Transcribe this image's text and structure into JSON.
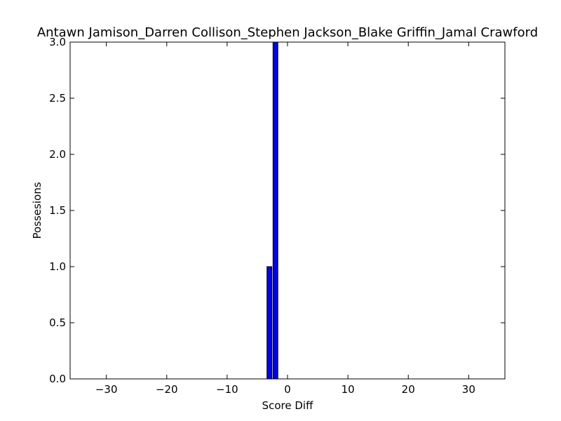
{
  "chart_data": {
    "type": "bar",
    "title": "Antawn Jamison_Darren Collison_Stephen Jackson_Blake Griffin_Jamal Crawford",
    "xlabel": "Score Diff",
    "ylabel": "Possesions",
    "xlim": [
      -36,
      36
    ],
    "ylim": [
      0,
      3.0
    ],
    "xticks": [
      -30,
      -20,
      -10,
      0,
      10,
      20,
      30
    ],
    "xtick_labels": [
      "−30",
      "−20",
      "−10",
      "0",
      "10",
      "20",
      "30"
    ],
    "yticks": [
      0,
      0.5,
      1.0,
      1.5,
      2.0,
      2.5,
      3.0
    ],
    "ytick_labels": [
      "0.0",
      "0.5",
      "1.0",
      "1.5",
      "2.0",
      "2.5",
      "3.0"
    ],
    "bar_width": 0.8,
    "x": [
      -35,
      -34,
      -33,
      -32,
      -31,
      -30,
      -29,
      -28,
      -27,
      -26,
      -25,
      -24,
      -23,
      -22,
      -21,
      -20,
      -19,
      -18,
      -17,
      -16,
      -15,
      -14,
      -13,
      -12,
      -11,
      -10,
      -9,
      -8,
      -7,
      -6,
      -5,
      -4,
      -3,
      -2,
      -1,
      0,
      1,
      2,
      3,
      4,
      5,
      6,
      7,
      8,
      9,
      10,
      11,
      12,
      13,
      14,
      15,
      16,
      17,
      18,
      19,
      20,
      21,
      22,
      23,
      24,
      25,
      26,
      27,
      28,
      29,
      30,
      31,
      32,
      33,
      34,
      35
    ],
    "values": [
      0,
      0,
      0,
      0,
      0,
      0,
      0,
      0,
      0,
      0,
      0,
      0,
      0,
      0,
      0,
      0,
      0,
      0,
      0,
      0,
      0,
      0,
      0,
      0,
      0,
      0,
      0,
      0,
      0,
      0,
      0,
      0,
      1,
      3,
      0,
      0,
      0,
      0,
      0,
      0,
      0,
      0,
      0,
      0,
      0,
      0,
      0,
      0,
      0,
      0,
      0,
      0,
      0,
      0,
      0,
      0,
      0,
      0,
      0,
      0,
      0,
      0,
      0,
      0,
      0,
      0,
      0,
      0,
      0,
      0,
      0
    ],
    "bar_color": "#0000ff",
    "grid": false
  }
}
